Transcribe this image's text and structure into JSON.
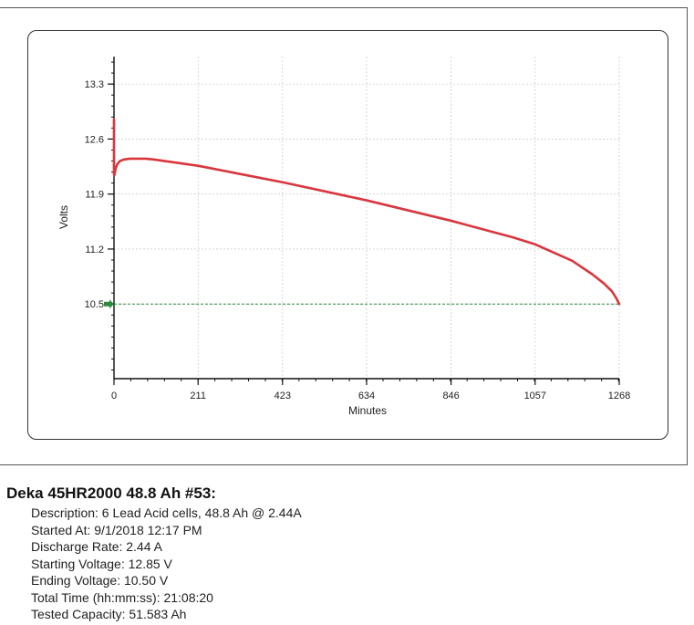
{
  "chart_data": {
    "type": "line",
    "title": "",
    "xlabel": "Minutes",
    "ylabel": "Volts",
    "xlim": [
      0,
      1268
    ],
    "ylim": [
      9.55,
      13.65
    ],
    "x_ticks": [
      0,
      211,
      423,
      634,
      846,
      1057,
      1268
    ],
    "y_ticks": [
      "13.3",
      "12.6",
      "11.9",
      "11.2",
      "10.5"
    ],
    "series": [
      {
        "name": "",
        "color": "#d9363e",
        "x": [
          0,
          0,
          1,
          4,
          8,
          15,
          25,
          40,
          60,
          80,
          100,
          211,
          423,
          634,
          846,
          1000,
          1057,
          1150,
          1200,
          1230,
          1250,
          1260,
          1268
        ],
        "y": [
          12.85,
          12.15,
          12.14,
          12.22,
          12.28,
          12.32,
          12.34,
          12.35,
          12.35,
          12.35,
          12.34,
          12.26,
          12.05,
          11.82,
          11.56,
          11.35,
          11.26,
          11.05,
          10.88,
          10.76,
          10.66,
          10.58,
          10.5
        ]
      }
    ],
    "cutoff_line": {
      "value": 10.5,
      "color": "#2e8b3a"
    },
    "grid": true
  },
  "report": {
    "title": "Deka 45HR2000 48.8 Ah #53:",
    "lines": [
      "Description: 6 Lead Acid cells, 48.8 Ah @ 2.44A",
      "Started At: 9/1/2018 12:17 PM",
      "Discharge Rate: 2.44 A",
      "Starting Voltage: 12.85 V",
      "Ending Voltage: 10.50 V",
      "Total Time (hh:mm:ss): 21:08:20",
      "Tested Capacity: 51.583 Ah"
    ]
  }
}
